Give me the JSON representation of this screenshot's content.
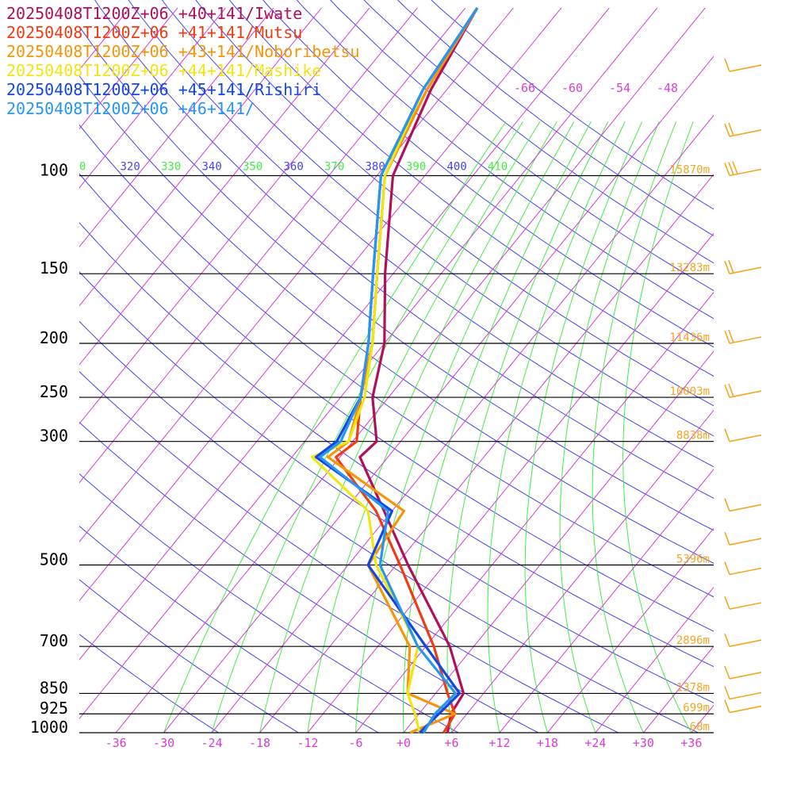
{
  "chart_data": {
    "type": "line",
    "title": "",
    "chart_kind": "skew-T log-P sounding",
    "pressure_levels": [
      100,
      150,
      200,
      250,
      300,
      500,
      700,
      850,
      925,
      1000
    ],
    "pressure_labels": [
      "100",
      "150",
      "200",
      "250",
      "300",
      "500",
      "700",
      "850",
      "925",
      "1000"
    ],
    "temperature_ticks": [
      -36,
      -30,
      -24,
      -18,
      -12,
      -6,
      0,
      6,
      12,
      18,
      24,
      30,
      36
    ],
    "temperature_tick_labels": [
      "-36",
      "-30",
      "-24",
      "-18",
      "-12",
      "-6",
      "+0",
      "+6",
      "+12",
      "+18",
      "+24",
      "+30",
      "+36"
    ],
    "mixing_ratio_labels": [
      "-66",
      "-60",
      "-54",
      "-48"
    ],
    "theta_labels": [
      "0",
      "320",
      "330",
      "340",
      "350",
      "360",
      "370",
      "380",
      "390",
      "400",
      "410"
    ],
    "height_labels": [
      {
        "p": 100,
        "text": "15870m"
      },
      {
        "p": 150,
        "text": "13283m"
      },
      {
        "p": 200,
        "text": "11436m"
      },
      {
        "p": 250,
        "text": "10003m"
      },
      {
        "p": 300,
        "text": "8838m"
      },
      {
        "p": 500,
        "text": "5396m"
      },
      {
        "p": 700,
        "text": "2896m"
      },
      {
        "p": 850,
        "text": "1378m"
      },
      {
        "p": 925,
        "text": "699m"
      },
      {
        "p": 1000,
        "text": "68m"
      }
    ],
    "colors": {
      "isobar": "#000000",
      "skewed_isotherm": "#d63cd6",
      "dry_adiabat": "#4444ee",
      "moist_adiabat": "#44ee44",
      "height_label": "#f5a623",
      "wind_barb": "#f5a623"
    },
    "series": [
      {
        "name": "20250408T1200Z+06 +40+141/Iwate",
        "color": "#b0105a",
        "points": [
          [
            1000,
            5.5
          ],
          [
            925,
            4.0
          ],
          [
            850,
            3.5
          ],
          [
            700,
            -3.0
          ],
          [
            500,
            -16.5
          ],
          [
            400,
            -25.0
          ],
          [
            320,
            -33.5
          ],
          [
            300,
            -33.0
          ],
          [
            250,
            -38.0
          ],
          [
            200,
            -42.0
          ],
          [
            150,
            -49.0
          ],
          [
            100,
            -58.0
          ],
          [
            70,
            -62.0
          ],
          [
            50,
            -64.5
          ]
        ]
      },
      {
        "name": "20250408T1200Z+06 +41+141/Mutsu",
        "color": "#f03c14",
        "points": [
          [
            1000,
            5.0
          ],
          [
            925,
            4.5
          ],
          [
            850,
            1.5
          ],
          [
            700,
            -5.0
          ],
          [
            500,
            -17.5
          ],
          [
            400,
            -26.0
          ],
          [
            320,
            -36.5
          ],
          [
            300,
            -35.5
          ],
          [
            250,
            -39.5
          ],
          [
            200,
            -43.5
          ],
          [
            150,
            -50.0
          ],
          [
            100,
            -59.0
          ],
          [
            70,
            -62.5
          ],
          [
            50,
            -64.5
          ]
        ]
      },
      {
        "name": "20250408T1200Z+06 +43+141/Noboribetsu",
        "color": "#f5960a",
        "points": [
          [
            1000,
            0.8
          ],
          [
            925,
            4.5
          ],
          [
            850,
            -3.5
          ],
          [
            700,
            -8.0
          ],
          [
            500,
            -21.5
          ],
          [
            400,
            -22.5
          ],
          [
            320,
            -37.5
          ],
          [
            300,
            -36.5
          ],
          [
            250,
            -39.5
          ],
          [
            200,
            -43.5
          ],
          [
            150,
            -50.0
          ],
          [
            100,
            -59.0
          ],
          [
            70,
            -62.5
          ],
          [
            50,
            -64.5
          ]
        ]
      },
      {
        "name": "20250408T1200Z+06 +44+141/Mashike",
        "color": "#f0e614",
        "points": [
          [
            1000,
            2.0
          ],
          [
            925,
            -0.5
          ],
          [
            850,
            -3.5
          ],
          [
            700,
            -7.0
          ],
          [
            500,
            -20.5
          ],
          [
            400,
            -27.0
          ],
          [
            320,
            -39.5
          ],
          [
            300,
            -36.5
          ],
          [
            250,
            -39.0
          ],
          [
            200,
            -43.5
          ],
          [
            150,
            -50.0
          ],
          [
            100,
            -59.0
          ],
          [
            70,
            -63.0
          ],
          [
            50,
            -64.5
          ]
        ]
      },
      {
        "name": "20250408T1200Z+06 +45+141/Rishiri",
        "color": "#1446e6",
        "points": [
          [
            1000,
            2.0
          ],
          [
            925,
            2.5
          ],
          [
            850,
            3.0
          ],
          [
            700,
            -6.0
          ],
          [
            500,
            -21.5
          ],
          [
            400,
            -24.0
          ],
          [
            320,
            -39.0
          ],
          [
            300,
            -38.0
          ],
          [
            250,
            -39.5
          ],
          [
            200,
            -44.0
          ],
          [
            150,
            -50.5
          ],
          [
            100,
            -59.5
          ],
          [
            70,
            -63.0
          ],
          [
            50,
            -64.5
          ]
        ]
      },
      {
        "name": "20250408T1200Z+06 +46+141/",
        "color": "#2896f0",
        "points": [
          [
            1000,
            2.5
          ],
          [
            925,
            2.0
          ],
          [
            850,
            2.5
          ],
          [
            700,
            -7.0
          ],
          [
            500,
            -20.0
          ],
          [
            400,
            -24.5
          ],
          [
            320,
            -38.5
          ],
          [
            300,
            -37.5
          ],
          [
            250,
            -39.5
          ],
          [
            200,
            -44.0
          ],
          [
            150,
            -50.5
          ],
          [
            100,
            -59.5
          ],
          [
            70,
            -63.0
          ],
          [
            50,
            -64.5
          ]
        ]
      }
    ],
    "wind_barbs": [
      {
        "p": 65,
        "barbs": 1
      },
      {
        "p": 85,
        "barbs": 2
      },
      {
        "p": 100,
        "barbs": 3
      },
      {
        "p": 150,
        "barbs": 2
      },
      {
        "p": 200,
        "barbs": 2
      },
      {
        "p": 250,
        "barbs": 2
      },
      {
        "p": 300,
        "barbs": 1
      },
      {
        "p": 400,
        "barbs": 1
      },
      {
        "p": 460,
        "barbs": 1
      },
      {
        "p": 520,
        "barbs": 1
      },
      {
        "p": 600,
        "barbs": 1
      },
      {
        "p": 700,
        "barbs": 1
      },
      {
        "p": 800,
        "barbs": 1
      },
      {
        "p": 870,
        "barbs": 1
      },
      {
        "p": 920,
        "barbs": 1
      }
    ]
  }
}
